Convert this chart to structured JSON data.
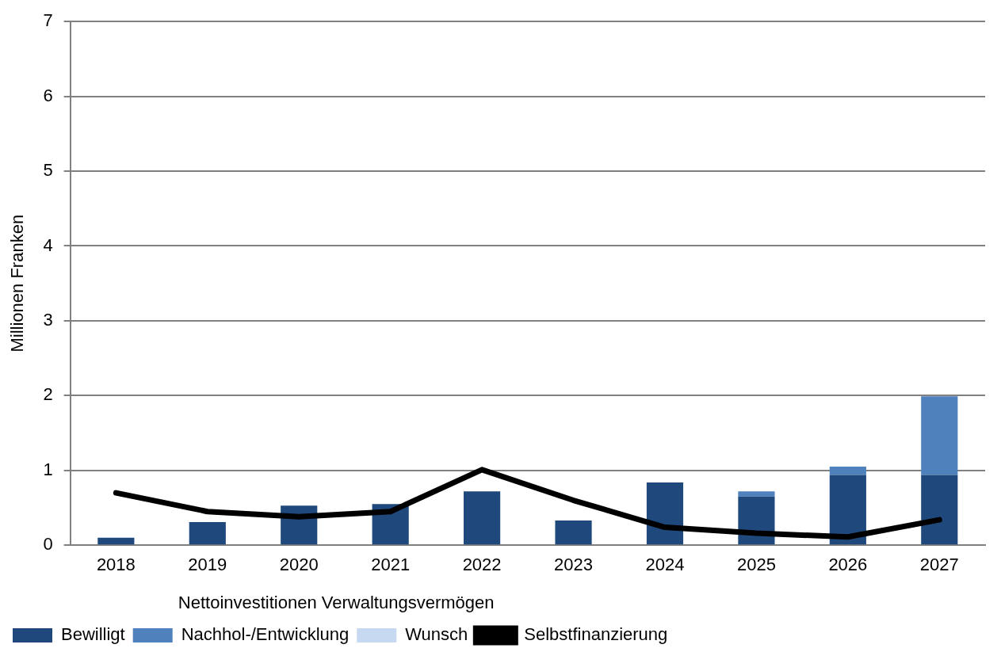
{
  "chart_data": {
    "type": "bar",
    "stacked": true,
    "ylabel": "Millionen Franken",
    "legend_title": "Nettoinvestitionen Verwaltungsvermögen",
    "categories": [
      "2018",
      "2019",
      "2020",
      "2021",
      "2022",
      "2023",
      "2024",
      "2025",
      "2026",
      "2027"
    ],
    "series": [
      {
        "name": "Bewilligt",
        "color": "#1f497d",
        "values": [
          0.1,
          0.31,
          0.53,
          0.55,
          0.72,
          0.33,
          0.84,
          0.65,
          0.94,
          0.94
        ]
      },
      {
        "name": "Nachhol-/Entwicklung",
        "color": "#4f81bd",
        "values": [
          0,
          0,
          0,
          0,
          0,
          0,
          0,
          0.07,
          0.11,
          1.05
        ]
      },
      {
        "name": "Wunsch",
        "color": "#c6d9f1",
        "values": [
          0,
          0,
          0,
          0,
          0,
          0,
          0,
          0,
          0,
          0
        ]
      },
      {
        "name": "Selbstfinanzierung",
        "type": "line",
        "color": "#000000",
        "values": [
          0.7,
          0.45,
          0.38,
          0.45,
          1.01,
          0.6,
          0.24,
          0.16,
          0.11,
          0.34
        ]
      }
    ],
    "ylim": [
      0,
      7
    ],
    "yticks": [
      0,
      1,
      2,
      3,
      4,
      5,
      6,
      7
    ],
    "grid": "y",
    "legend": "bottom",
    "marker": "none"
  }
}
